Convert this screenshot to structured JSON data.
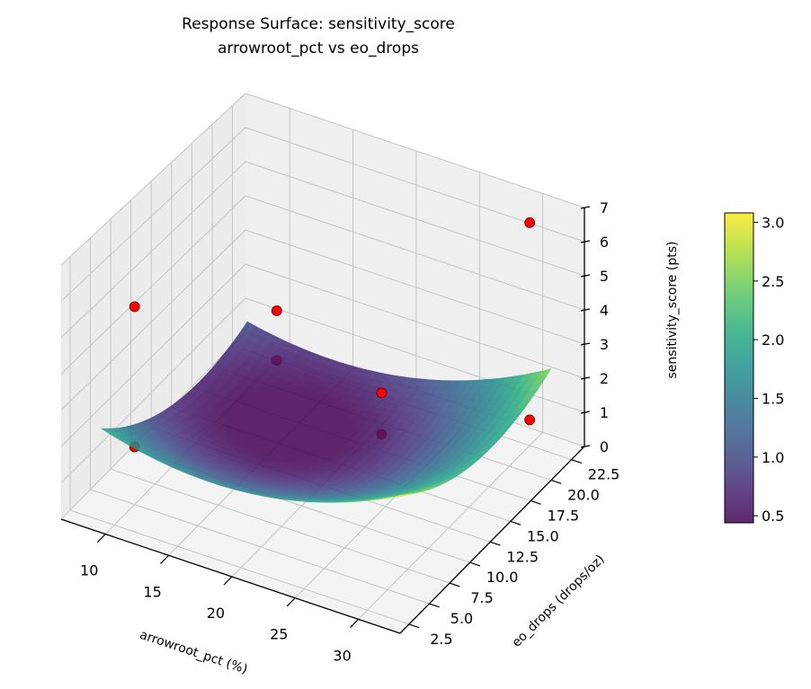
{
  "chart_data": {
    "type": "surface3d",
    "title": "Response Surface: sensitivity_score",
    "subtitle": "arrowroot_pct vs eo_drops",
    "xlabel": "arrowroot_pct (%)",
    "ylabel": "eo_drops (drops/oz)",
    "zlabel": "sensitivity_score (pts)",
    "xlim": [
      6.5,
      33.3
    ],
    "ylim": [
      1.4,
      24.1
    ],
    "zlim": [
      0,
      7
    ],
    "xticks": [
      "10",
      "15",
      "20",
      "25",
      "30"
    ],
    "yticks": [
      "2.5",
      "5.0",
      "7.5",
      "10.0",
      "12.5",
      "15.0",
      "17.5",
      "20.0",
      "22.5"
    ],
    "zticks": [
      "0",
      "1",
      "2",
      "3",
      "4",
      "5",
      "6",
      "7"
    ],
    "grid": true,
    "colormap": "viridis",
    "surface": {
      "model": "quadratic",
      "x_range": [
        8,
        32
      ],
      "y_range": [
        4,
        22
      ],
      "corner_values": {
        "x8_y4": 2.1,
        "x8_y22": 1.0,
        "x32_y22": 2.6,
        "x32_y4": 3.1
      },
      "min_value": 0.45
    },
    "colorbar": {
      "range": [
        0.44,
        3.08
      ],
      "ticks": [
        "0.5",
        "1.0",
        "1.5",
        "2.0",
        "2.5",
        "3.0"
      ]
    },
    "points": [
      {
        "x": 10,
        "y": 5,
        "z": 5.5
      },
      {
        "x": 10,
        "y": 5,
        "z": 1.6
      },
      {
        "x": 10,
        "y": 22.5,
        "z": 1.45
      },
      {
        "x": 10,
        "y": 22.5,
        "z": 0.0
      },
      {
        "x": 30,
        "y": 22.5,
        "z": 6.5
      },
      {
        "x": 30,
        "y": 22.5,
        "z": 0.75
      },
      {
        "x": 21.5,
        "y": 17.5,
        "z": 1.66
      },
      {
        "x": 21.5,
        "y": 17.5,
        "z": 0.47
      }
    ],
    "point_color": "#ff0000"
  }
}
